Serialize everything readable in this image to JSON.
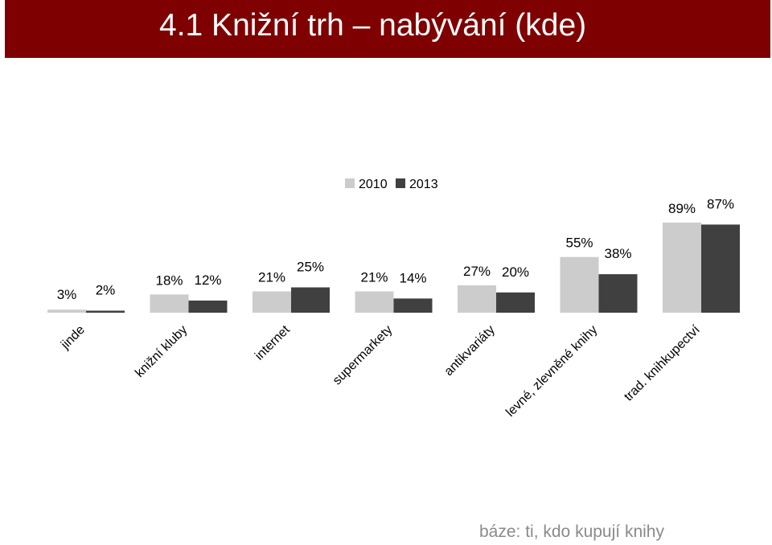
{
  "title": "4.1 Knižní trh – nabývání (kde)",
  "footnote": "báze: ti, kdo kupují knihy",
  "colors": {
    "title_bg": "#7f0000",
    "series_2010": "#cccccc",
    "series_2013": "#404040"
  },
  "chart_data": {
    "type": "bar",
    "categories": [
      "jinde",
      "knižní kluby",
      "internet",
      "supermarkety",
      "antikvariáty",
      "levné, zlevněné knihy",
      "trad. knihkupectví"
    ],
    "series": [
      {
        "name": "2010",
        "values": [
          3,
          18,
          21,
          21,
          27,
          55,
          89
        ],
        "labels": [
          "3%",
          "18%",
          "21%",
          "21%",
          "27%",
          "55%",
          "89%"
        ]
      },
      {
        "name": "2013",
        "values": [
          2,
          12,
          25,
          14,
          20,
          38,
          87
        ],
        "labels": [
          "2%",
          "12%",
          "25%",
          "14%",
          "20%",
          "38%",
          "87%"
        ]
      }
    ],
    "ylim": [
      0,
      100
    ],
    "legend": "top-center",
    "grid": false,
    "xlabel": "",
    "ylabel": ""
  }
}
